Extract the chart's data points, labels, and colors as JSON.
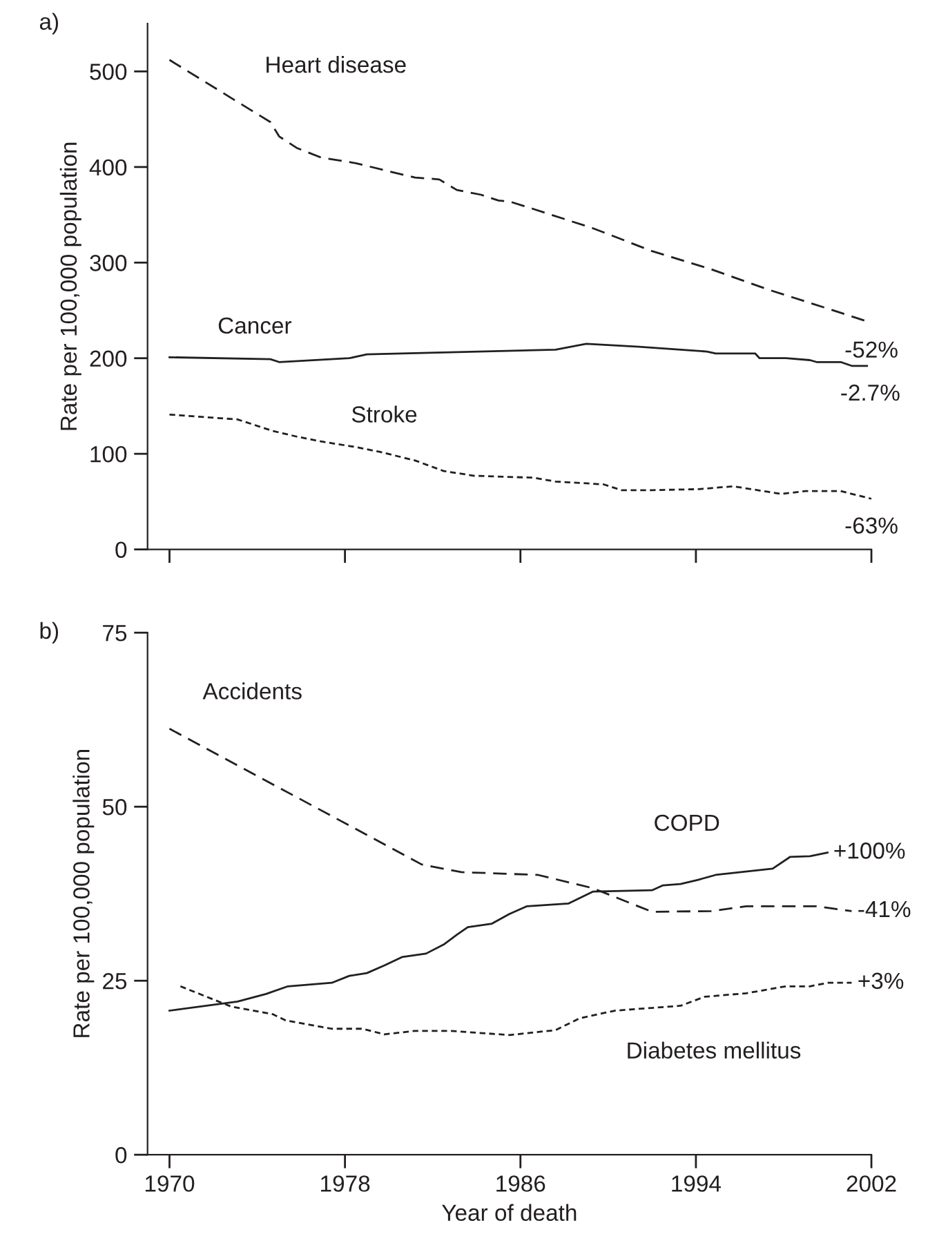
{
  "chart_data": [
    {
      "type": "line",
      "title": "a)",
      "ylabel": "Rate per 100,000 population",
      "xlim": [
        1969,
        2002
      ],
      "xticks": [
        {
          "value": 1970,
          "label": null
        },
        {
          "value": 1978,
          "label": null
        },
        {
          "value": 1986,
          "label": null
        },
        {
          "value": 1994,
          "label": null
        },
        {
          "value": 2002,
          "label": null
        }
      ],
      "ylim": [
        0,
        550
      ],
      "yticks": [
        0,
        100,
        200,
        300,
        400,
        500
      ],
      "tick_labels": "y",
      "grid": false,
      "legend": false,
      "series": [
        {
          "name": "Heart disease",
          "color": "#231f20",
          "line_style": "dashed",
          "x": [
            1970,
            1974.6,
            1975,
            1975.8,
            1976.9,
            1978.5,
            1980.1,
            1981.2,
            1982.3,
            1983.1,
            1984.2,
            1985,
            1985.5,
            1986.6,
            1989.3,
            1992,
            1994.7,
            1997.4,
            2000,
            2002
          ],
          "values": [
            512,
            447,
            432,
            420,
            410,
            404,
            395,
            389,
            387,
            376,
            371,
            365,
            364,
            356,
            336,
            312,
            293,
            271,
            252,
            237
          ]
        },
        {
          "name": "Cancer",
          "color": "#231f20",
          "line_style": "solid",
          "x": [
            1970,
            1974.6,
            1975,
            1978.2,
            1979,
            1987.6,
            1989,
            1991.4,
            1994.5,
            1994.9,
            1996.7,
            1996.9,
            1998.1,
            1999.2,
            1999.5,
            2000.6,
            2001.1,
            2001.8
          ],
          "values": [
            201,
            199,
            196,
            200,
            204,
            209,
            215,
            212,
            207,
            205,
            205,
            200,
            200,
            198,
            196,
            196,
            192,
            192
          ]
        },
        {
          "name": "Stroke",
          "color": "#231f20",
          "line_style": "dotted",
          "x": [
            1970,
            1973.1,
            1974.7,
            1975.8,
            1976.9,
            1978.5,
            1979.6,
            1981.2,
            1982.5,
            1983.9,
            1986.6,
            1987.6,
            1989.8,
            1990.6,
            1992,
            1994.1,
            1995.7,
            1997.9,
            1999,
            2000.6,
            2002
          ],
          "values": [
            141,
            136,
            124,
            118,
            113,
            107,
            102,
            93,
            82,
            77,
            75,
            71,
            68,
            62,
            62,
            63,
            66,
            58,
            61,
            61,
            53
          ]
        }
      ],
      "annotations": [
        {
          "text": "-52%",
          "x": 2002,
          "y": 237
        },
        {
          "text": "-2.7%",
          "x": 2001.8,
          "y": 192
        },
        {
          "text": "-63%",
          "x": 2002,
          "y": 53
        }
      ]
    },
    {
      "type": "line",
      "title": "b)",
      "ylabel": "Rate per 100,000 population",
      "xlabel": "Year of death",
      "xlim": [
        1969,
        2002
      ],
      "xticks": [
        1970,
        1978,
        1986,
        1994,
        2002
      ],
      "ylim": [
        0,
        75
      ],
      "yticks": [
        0,
        25,
        50,
        75
      ],
      "grid": false,
      "legend": false,
      "series": [
        {
          "name": "Accidents",
          "color": "#231f20",
          "line_style": "dashed",
          "x": [
            1970,
            1981.5,
            1983.3,
            1986.8,
            1989.3,
            1992,
            1994.7,
            1996.3,
            1999.5,
            2001.1
          ],
          "values": [
            61.2,
            41.7,
            40.6,
            40.2,
            38.3,
            34.9,
            35.0,
            35.7,
            35.7,
            35.0
          ]
        },
        {
          "name": "COPD",
          "color": "#231f20",
          "line_style": "solid",
          "x": [
            1970,
            1973.1,
            1974.4,
            1975.4,
            1977.4,
            1978.2,
            1979,
            1979.8,
            1980.6,
            1981.7,
            1982.5,
            1983.1,
            1983.6,
            1984.7,
            1985.5,
            1986.3,
            1988.2,
            1989.3,
            1992,
            1992.5,
            1993.3,
            1994.1,
            1994.9,
            1997.5,
            1998.3,
            1999.2,
            2000
          ],
          "values": [
            20.7,
            22.0,
            23.1,
            24.2,
            24.7,
            25.7,
            26.1,
            27.2,
            28.4,
            28.9,
            30.2,
            31.6,
            32.7,
            33.2,
            34.6,
            35.7,
            36.1,
            37.8,
            38.0,
            38.7,
            38.9,
            39.5,
            40.2,
            41.1,
            42.8,
            42.9,
            43.4
          ]
        },
        {
          "name": "Diabetes mellitus",
          "color": "#231f20",
          "line_style": "dotted",
          "x": [
            1970.5,
            1972.8,
            1974.7,
            1975.3,
            1977.4,
            1978.8,
            1979.8,
            1981.2,
            1982.8,
            1985.5,
            1987.6,
            1988.7,
            1990.3,
            1992,
            1993.3,
            1994.4,
            1996.3,
            1998.1,
            1999.2,
            2000,
            2001.1
          ],
          "values": [
            24.2,
            21.3,
            20.2,
            19.3,
            18.1,
            18.1,
            17.3,
            17.8,
            17.8,
            17.2,
            17.9,
            19.6,
            20.7,
            21.1,
            21.4,
            22.7,
            23.2,
            24.2,
            24.2,
            24.7,
            24.7
          ]
        }
      ],
      "annotations": [
        {
          "text": "+100%",
          "x": 2000,
          "y": 43.4
        },
        {
          "text": "-41%",
          "x": 2001.1,
          "y": 35.0
        },
        {
          "text": "+3%",
          "x": 2001.1,
          "y": 24.7
        }
      ]
    }
  ]
}
